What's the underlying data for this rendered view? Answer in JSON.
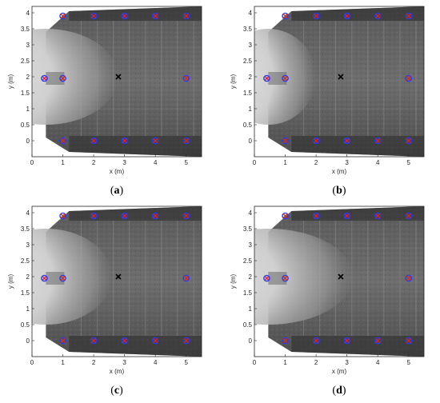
{
  "colors": {
    "circle_marker": "#1f3cff",
    "x_marker": "#e0202a",
    "source_marker": "#000000",
    "axis": "#262626",
    "background": "#ffffff"
  },
  "chart_data": [
    {
      "type": "scatter",
      "caption_open": "(",
      "caption_letter": "a",
      "caption_close": ")",
      "xlabel": "x (m)",
      "ylabel": "y (m)",
      "xlim": [
        0,
        5.5
      ],
      "ylim": [
        -0.5,
        4.2
      ],
      "xticks": [
        "0",
        "1",
        "2",
        "3",
        "4",
        "5"
      ],
      "yticks": [
        "0",
        "0.5",
        "1",
        "1.5",
        "2",
        "2.5",
        "3",
        "3.5",
        "4"
      ],
      "background_image": "grayscale photograph of floor with bright spray plume from left",
      "plume_extent_x": 2.8,
      "source": {
        "x": 2.8,
        "y": 2.0
      },
      "sensors": [
        {
          "x": 0.4,
          "y": 1.95
        },
        {
          "x": 1.0,
          "y": 1.95
        },
        {
          "x": 1.0,
          "y": 3.9
        },
        {
          "x": 2.0,
          "y": 3.9
        },
        {
          "x": 3.0,
          "y": 3.9
        },
        {
          "x": 4.0,
          "y": 3.9
        },
        {
          "x": 5.0,
          "y": 3.9
        },
        {
          "x": 5.0,
          "y": 1.95
        },
        {
          "x": 1.0,
          "y": 0.0
        },
        {
          "x": 2.0,
          "y": 0.0
        },
        {
          "x": 3.0,
          "y": 0.0
        },
        {
          "x": 4.0,
          "y": 0.0
        },
        {
          "x": 5.0,
          "y": 0.0
        }
      ]
    },
    {
      "type": "scatter",
      "caption_open": "(",
      "caption_letter": "b",
      "caption_close": ")",
      "xlabel": "x (m)",
      "ylabel": "y (m)",
      "xlim": [
        0,
        5.5
      ],
      "ylim": [
        -0.5,
        4.2
      ],
      "xticks": [
        "0",
        "1",
        "2",
        "3",
        "4",
        "5"
      ],
      "yticks": [
        "0",
        "0.5",
        "1",
        "1.5",
        "2",
        "2.5",
        "3",
        "3.5",
        "4"
      ],
      "background_image": "grayscale photograph of floor with bright spray plume from left",
      "plume_extent_x": 2.0,
      "source": {
        "x": 2.8,
        "y": 2.0
      },
      "sensors": [
        {
          "x": 0.4,
          "y": 1.95
        },
        {
          "x": 1.0,
          "y": 1.95
        },
        {
          "x": 1.0,
          "y": 3.9
        },
        {
          "x": 2.0,
          "y": 3.9
        },
        {
          "x": 3.0,
          "y": 3.9
        },
        {
          "x": 4.0,
          "y": 3.9
        },
        {
          "x": 5.0,
          "y": 3.9
        },
        {
          "x": 5.0,
          "y": 1.95
        },
        {
          "x": 1.0,
          "y": 0.0
        },
        {
          "x": 2.0,
          "y": 0.0
        },
        {
          "x": 3.0,
          "y": 0.0
        },
        {
          "x": 4.0,
          "y": 0.0
        },
        {
          "x": 5.0,
          "y": 0.0
        }
      ]
    },
    {
      "type": "scatter",
      "caption_open": "(",
      "caption_letter": "c",
      "caption_close": ")",
      "xlabel": "x (m)",
      "ylabel": "y (m)",
      "xlim": [
        0,
        5.5
      ],
      "ylim": [
        -0.5,
        4.2
      ],
      "xticks": [
        "0",
        "1",
        "2",
        "3",
        "4",
        "5"
      ],
      "yticks": [
        "0",
        "0.5",
        "1",
        "1.5",
        "2",
        "2.5",
        "3",
        "3.5",
        "4"
      ],
      "background_image": "grayscale photograph of floor with bright spray plume from left",
      "plume_extent_x": 2.6,
      "source": {
        "x": 2.8,
        "y": 2.0
      },
      "sensors": [
        {
          "x": 0.4,
          "y": 1.95
        },
        {
          "x": 1.0,
          "y": 1.95
        },
        {
          "x": 1.0,
          "y": 3.9
        },
        {
          "x": 2.0,
          "y": 3.9
        },
        {
          "x": 3.0,
          "y": 3.9
        },
        {
          "x": 4.0,
          "y": 3.9
        },
        {
          "x": 5.0,
          "y": 3.9
        },
        {
          "x": 5.0,
          "y": 1.95
        },
        {
          "x": 1.0,
          "y": 0.0
        },
        {
          "x": 2.0,
          "y": 0.0
        },
        {
          "x": 3.0,
          "y": 0.0
        },
        {
          "x": 4.0,
          "y": 0.0
        },
        {
          "x": 5.0,
          "y": 0.0
        }
      ]
    },
    {
      "type": "scatter",
      "caption_open": "(",
      "caption_letter": "d",
      "caption_close": ")",
      "xlabel": "x (m)",
      "ylabel": "y (m)",
      "xlim": [
        0,
        5.5
      ],
      "ylim": [
        -0.5,
        4.2
      ],
      "xticks": [
        "0",
        "1",
        "2",
        "3",
        "4",
        "5"
      ],
      "yticks": [
        "0",
        "0.5",
        "1",
        "1.5",
        "2",
        "2.5",
        "3",
        "3.5",
        "4"
      ],
      "background_image": "grayscale photograph of floor with bright spray plume from left",
      "plume_extent_x": 3.2,
      "source": {
        "x": 2.8,
        "y": 2.0
      },
      "sensors": [
        {
          "x": 0.4,
          "y": 1.95
        },
        {
          "x": 1.0,
          "y": 1.95
        },
        {
          "x": 1.0,
          "y": 3.9
        },
        {
          "x": 2.0,
          "y": 3.9
        },
        {
          "x": 3.0,
          "y": 3.9
        },
        {
          "x": 4.0,
          "y": 3.9
        },
        {
          "x": 5.0,
          "y": 3.9
        },
        {
          "x": 5.0,
          "y": 1.95
        },
        {
          "x": 1.0,
          "y": 0.0
        },
        {
          "x": 2.0,
          "y": 0.0
        },
        {
          "x": 3.0,
          "y": 0.0
        },
        {
          "x": 4.0,
          "y": 0.0
        },
        {
          "x": 5.0,
          "y": 0.0
        }
      ]
    }
  ]
}
